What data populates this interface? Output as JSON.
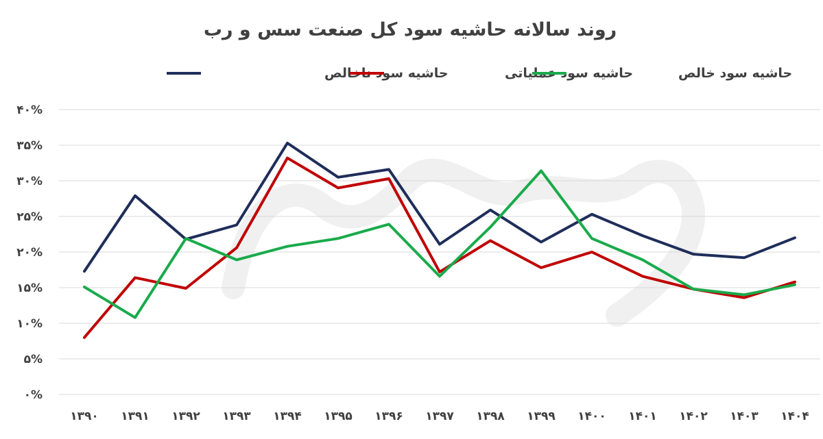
{
  "chart_data": {
    "type": "line",
    "title": "روند سالانه حاشیه سود کل صنعت سس و رب",
    "xlabel": "",
    "ylabel": "",
    "categories": [
      "۱۳۹۰",
      "۱۳۹۱",
      "۱۳۹۲",
      "۱۳۹۳",
      "۱۳۹۴",
      "۱۳۹۵",
      "۱۳۹۶",
      "۱۳۹۷",
      "۱۳۹۸",
      "۱۳۹۹",
      "۱۴۰۰",
      "۱۴۰۱",
      "۱۴۰۲",
      "۱۴۰۳",
      "۱۴۰۴"
    ],
    "y_ticks": [
      "۰%",
      "۵%",
      "۱۰%",
      "۱۵%",
      "۲۰%",
      "۲۵%",
      "۳۰%",
      "۳۵%",
      "۴۰%"
    ],
    "ylim": [
      0,
      40
    ],
    "grid": true,
    "legend_position": "top",
    "series": [
      {
        "name": "حاشیه سود ناخالص",
        "color": "#1f2d5a",
        "values": [
          17.3,
          27.9,
          21.8,
          23.8,
          35.3,
          30.5,
          31.6,
          21.1,
          25.9,
          21.4,
          25.3,
          22.3,
          19.7,
          19.2,
          22.0
        ]
      },
      {
        "name": "حاشیه سود عملیاتی",
        "color": "#c00000",
        "values": [
          8.0,
          16.4,
          14.9,
          20.6,
          33.2,
          29.0,
          30.3,
          17.2,
          21.6,
          17.8,
          20.0,
          16.6,
          14.8,
          13.6,
          15.8
        ]
      },
      {
        "name": "حاشیه سود خالص",
        "color": "#1aaa4b",
        "values": [
          15.1,
          10.8,
          21.9,
          18.9,
          20.8,
          21.9,
          23.9,
          16.6,
          23.5,
          31.4,
          21.9,
          18.9,
          14.8,
          14.0,
          15.4
        ]
      }
    ]
  }
}
